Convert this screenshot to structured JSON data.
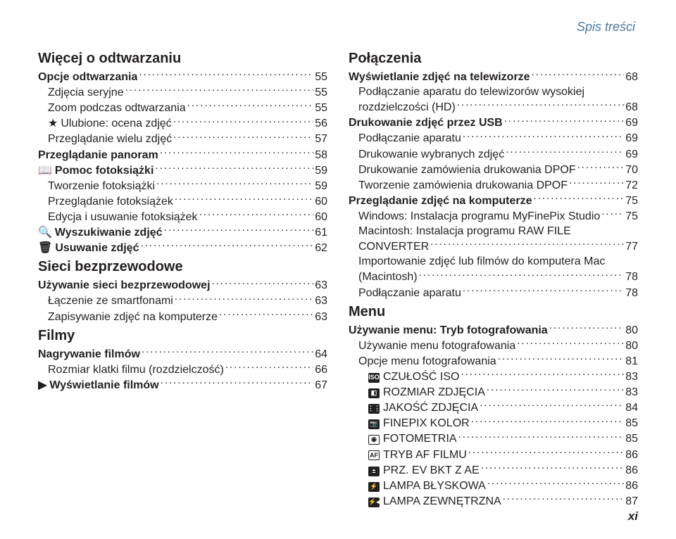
{
  "header": "Spis treści",
  "footer": "xi",
  "left": {
    "sections": [
      {
        "title": "Więcej o odtwarzaniu",
        "entries": [
          {
            "label": "Opcje odtwarzania",
            "page": "55",
            "bold": true,
            "indent": 0
          },
          {
            "label": "Zdjęcia seryjne",
            "page": "55",
            "indent": 1
          },
          {
            "label": "Zoom podczas odtwarzania",
            "page": "55",
            "indent": 1
          },
          {
            "icon": "★",
            "label": "Ulubione: ocena zdjęć",
            "page": "56",
            "indent": 1
          },
          {
            "label": "Przeglądanie wielu zdjęć",
            "page": "57",
            "indent": 1
          },
          {
            "label": "Przeglądanie panoram",
            "page": "58",
            "bold": true,
            "indent": 0
          },
          {
            "icon": "📖",
            "label": "Pomoc fotoksiążki",
            "page": "59",
            "bold": true,
            "indent": 0
          },
          {
            "label": "Tworzenie fotoksiążki",
            "page": "59",
            "indent": 1
          },
          {
            "label": "Przeglądanie fotoksiążek",
            "page": "60",
            "indent": 1
          },
          {
            "label": "Edycja i usuwanie fotoksiążek",
            "page": "60",
            "indent": 1
          },
          {
            "icon": "🔍",
            "label": "Wyszukiwanie zdjęć",
            "page": "61",
            "bold": true,
            "indent": 0
          },
          {
            "icon": "🗑",
            "label": "Usuwanie zdjęć",
            "page": "62",
            "bold": true,
            "indent": 0
          }
        ]
      },
      {
        "title": "Sieci bezprzewodowe",
        "entries": [
          {
            "label": "Używanie sieci bezprzewodowej",
            "page": "63",
            "bold": true,
            "indent": 0
          },
          {
            "label": "Łączenie ze smartfonami",
            "page": "63",
            "indent": 1
          },
          {
            "label": "Zapisywanie zdjęć na komputerze",
            "page": "63",
            "indent": 1
          }
        ]
      },
      {
        "title": "Filmy",
        "entries": [
          {
            "label": "Nagrywanie filmów",
            "page": "64",
            "bold": true,
            "indent": 0
          },
          {
            "label": "Rozmiar klatki filmu (rozdzielczość)",
            "page": "66",
            "indent": 1
          },
          {
            "icon": "▶",
            "label": "Wyświetlanie filmów",
            "page": "67",
            "bold": true,
            "indent": 0
          }
        ]
      }
    ]
  },
  "right": {
    "sections": [
      {
        "title": "Połączenia",
        "entries": [
          {
            "label": "Wyświetlanie zdjęć na telewizorze",
            "page": "68",
            "bold": true,
            "indent": 0
          },
          {
            "multiline": true,
            "line1": "Podłączanie aparatu do telewizorów wysokiej",
            "line2": "rozdzielczości (HD)",
            "page": "68",
            "indent": 1
          },
          {
            "label": "Drukowanie zdjęć przez USB",
            "page": "69",
            "bold": true,
            "indent": 0
          },
          {
            "label": "Podłączanie aparatu",
            "page": "69",
            "indent": 1
          },
          {
            "label": "Drukowanie wybranych zdjęć",
            "page": "69",
            "indent": 1
          },
          {
            "label": "Drukowanie zamówienia drukowania DPOF",
            "page": "70",
            "indent": 1
          },
          {
            "label": "Tworzenie zamówienia drukowania DPOF",
            "page": "72",
            "indent": 1
          },
          {
            "label": "Przeglądanie zdjęć na komputerze",
            "page": "75",
            "bold": true,
            "indent": 0
          },
          {
            "label": "Windows: Instalacja programu MyFinePix Studio",
            "page": "75",
            "indent": 1
          },
          {
            "multiline": true,
            "line1": "Macintosh: Instalacja programu RAW FILE",
            "line2": "CONVERTER",
            "page": "77",
            "indent": 1
          },
          {
            "multiline": true,
            "line1": "Importowanie zdjęć lub filmów do komputera Mac",
            "line2": "(Macintosh)",
            "page": "78",
            "indent": 1
          },
          {
            "label": "Podłączanie aparatu",
            "page": "78",
            "indent": 1
          }
        ]
      },
      {
        "title": "Menu",
        "entries": [
          {
            "label": "Używanie menu: Tryb fotografowania",
            "page": "80",
            "bold": true,
            "indent": 0
          },
          {
            "label": "Używanie menu fotografowania",
            "page": "80",
            "indent": 1
          },
          {
            "label": "Opcje menu fotografowania",
            "page": "81",
            "indent": 1
          },
          {
            "iconbox": "ISO",
            "label": "CZUŁOŚĆ ISO",
            "page": "83",
            "indent": 2
          },
          {
            "iconbox": "◧",
            "label": "ROZMIAR ZDJĘCIA",
            "page": "83",
            "indent": 2
          },
          {
            "iconbox": "⋮⋮",
            "label": "JAKOŚĆ ZDJĘCIA",
            "page": "84",
            "indent": 2
          },
          {
            "iconbox": "📷",
            "label": "FINEPIX KOLOR",
            "page": "85",
            "indent": 2
          },
          {
            "iconbox": "◉",
            "inv": true,
            "label": "FOTOMETRIA",
            "page": "85",
            "indent": 2
          },
          {
            "iconbox": "AF",
            "inv": true,
            "label": "TRYB AF FILMU",
            "page": "86",
            "indent": 2
          },
          {
            "iconbox": "±",
            "label": "PRZ. EV BKT Z AE",
            "page": "86",
            "indent": 2
          },
          {
            "iconbox": "⚡",
            "label": "LAMPA BŁYSKOWA",
            "page": "86",
            "indent": 2
          },
          {
            "iconbox": "⚡◂",
            "label": "LAMPA ZEWNĘTRZNA",
            "page": "87",
            "indent": 2
          }
        ]
      }
    ]
  }
}
